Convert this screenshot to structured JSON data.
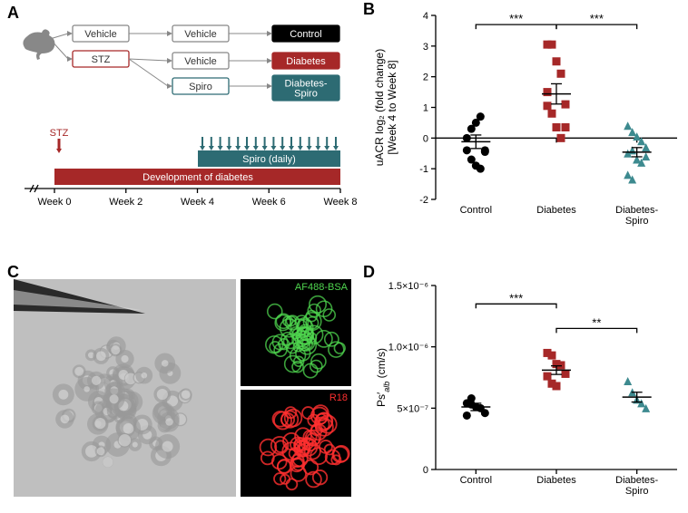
{
  "panelA": {
    "label": "A",
    "nodes": {
      "vehicle1": "Vehicle",
      "stz": "STZ",
      "vehicle2": "Vehicle",
      "vehicle3": "Vehicle",
      "spiro": "Spiro",
      "control": "Control",
      "diabetes": "Diabetes",
      "diabetesSpiro": "Diabetes-\nSpiro"
    },
    "timeline": {
      "spiroBar": "Spiro (daily)",
      "devBar": "Development of diabetes",
      "stzArrow": "STZ",
      "ticks": [
        "Week 0",
        "Week 2",
        "Week 4",
        "Week 6",
        "Week 8"
      ]
    },
    "colors": {
      "stzBorder": "#a62828",
      "spiroBorder": "#2d6b73",
      "controlFill": "#000000",
      "diabetesFill": "#a62828",
      "diabetesSpiroFill": "#2d6b73",
      "grayBorder": "#888888",
      "spiroBarFill": "#2d6b73",
      "devBarFill": "#a62828",
      "arrowFill": "#2d6b73",
      "stzArrowFill": "#a62828"
    },
    "fontsize": 11
  },
  "panelB": {
    "label": "B",
    "ylabel": "uACR log₂ (fold change)\n[Week 4 to Week 8]",
    "ylim": [
      -2,
      4
    ],
    "yticks": [
      -2,
      -1,
      0,
      1,
      2,
      3,
      4
    ],
    "categories": [
      "Control",
      "Diabetes",
      "Diabetes-\nSpiro"
    ],
    "groups": [
      {
        "name": "Control",
        "marker": "circle",
        "color": "#000000",
        "points": [
          0.0,
          0.3,
          0.5,
          0.7,
          -0.4,
          -0.4,
          -0.7,
          -0.9,
          -1.0,
          -0.45
        ],
        "mean": -0.12,
        "sem": 0.22
      },
      {
        "name": "Diabetes",
        "marker": "square",
        "color": "#a62828",
        "points": [
          3.05,
          3.05,
          2.5,
          2.1,
          1.1,
          1.05,
          0.8,
          0.35,
          0.0,
          0.35,
          1.5
        ],
        "mean": 1.44,
        "sem": 0.33
      },
      {
        "name": "Diabetes-Spiro",
        "marker": "triangle",
        "color": "#3d8a8f",
        "points": [
          0.4,
          0.2,
          0.05,
          -0.1,
          -0.3,
          -0.5,
          -0.4,
          -0.7,
          -0.8,
          -0.6,
          -1.2,
          -1.35,
          -0.7
        ],
        "mean": -0.46,
        "sem": 0.15
      }
    ],
    "sigbars": [
      {
        "from": 0,
        "to": 1,
        "y": 3.7,
        "label": "***"
      },
      {
        "from": 1,
        "to": 2,
        "y": 3.7,
        "label": "***"
      }
    ],
    "axis_fontsize": 12,
    "tick_fontsize": 11
  },
  "panelC": {
    "label": "C",
    "labels": {
      "af488": "AF488-BSA",
      "r18": "R18"
    },
    "colors": {
      "af488": "#4fd64f",
      "r18": "#ff3030"
    }
  },
  "panelD": {
    "label": "D",
    "ylabel": "Ps′_alb (cm/s)",
    "ylabel_main": "Ps",
    "ylabel_prime": "′",
    "ylabel_sub": "alb",
    "ylabel_unit": " (cm/s)",
    "ylim": [
      0,
      1.5e-06
    ],
    "yticks_vals": [
      0,
      5e-07,
      1e-06,
      1.5e-06
    ],
    "yticks_labels": [
      "0",
      "5×10⁻⁷",
      "1.0×10⁻⁶",
      "1.5×10⁻⁶"
    ],
    "categories": [
      "Control",
      "Diabetes",
      "Diabetes-\nSpiro"
    ],
    "groups": [
      {
        "name": "Control",
        "marker": "circle",
        "color": "#000000",
        "points": [
          5.4e-07,
          5.3e-07,
          5.1e-07,
          5e-07,
          4.6e-07,
          4.4e-07,
          5.8e-07
        ],
        "mean": 5.1e-07,
        "sem": 3e-08
      },
      {
        "name": "Diabetes",
        "marker": "square",
        "color": "#a62828",
        "points": [
          9.5e-07,
          9.3e-07,
          8.6e-07,
          8.5e-07,
          7.8e-07,
          7.6e-07,
          7e-07,
          6.8e-07
        ],
        "mean": 8.1e-07,
        "sem": 3.5e-08
      },
      {
        "name": "Diabetes-Spiro",
        "marker": "triangle",
        "color": "#3d8a8f",
        "points": [
          7.2e-07,
          6.3e-07,
          5.7e-07,
          5.4e-07,
          5e-07
        ],
        "mean": 5.9e-07,
        "sem": 4e-08
      }
    ],
    "sigbars": [
      {
        "from": 0,
        "to": 1,
        "y": 1.35e-06,
        "label": "***"
      },
      {
        "from": 1,
        "to": 2,
        "y": 1.15e-06,
        "label": "**"
      }
    ],
    "axis_fontsize": 12,
    "tick_fontsize": 11
  }
}
